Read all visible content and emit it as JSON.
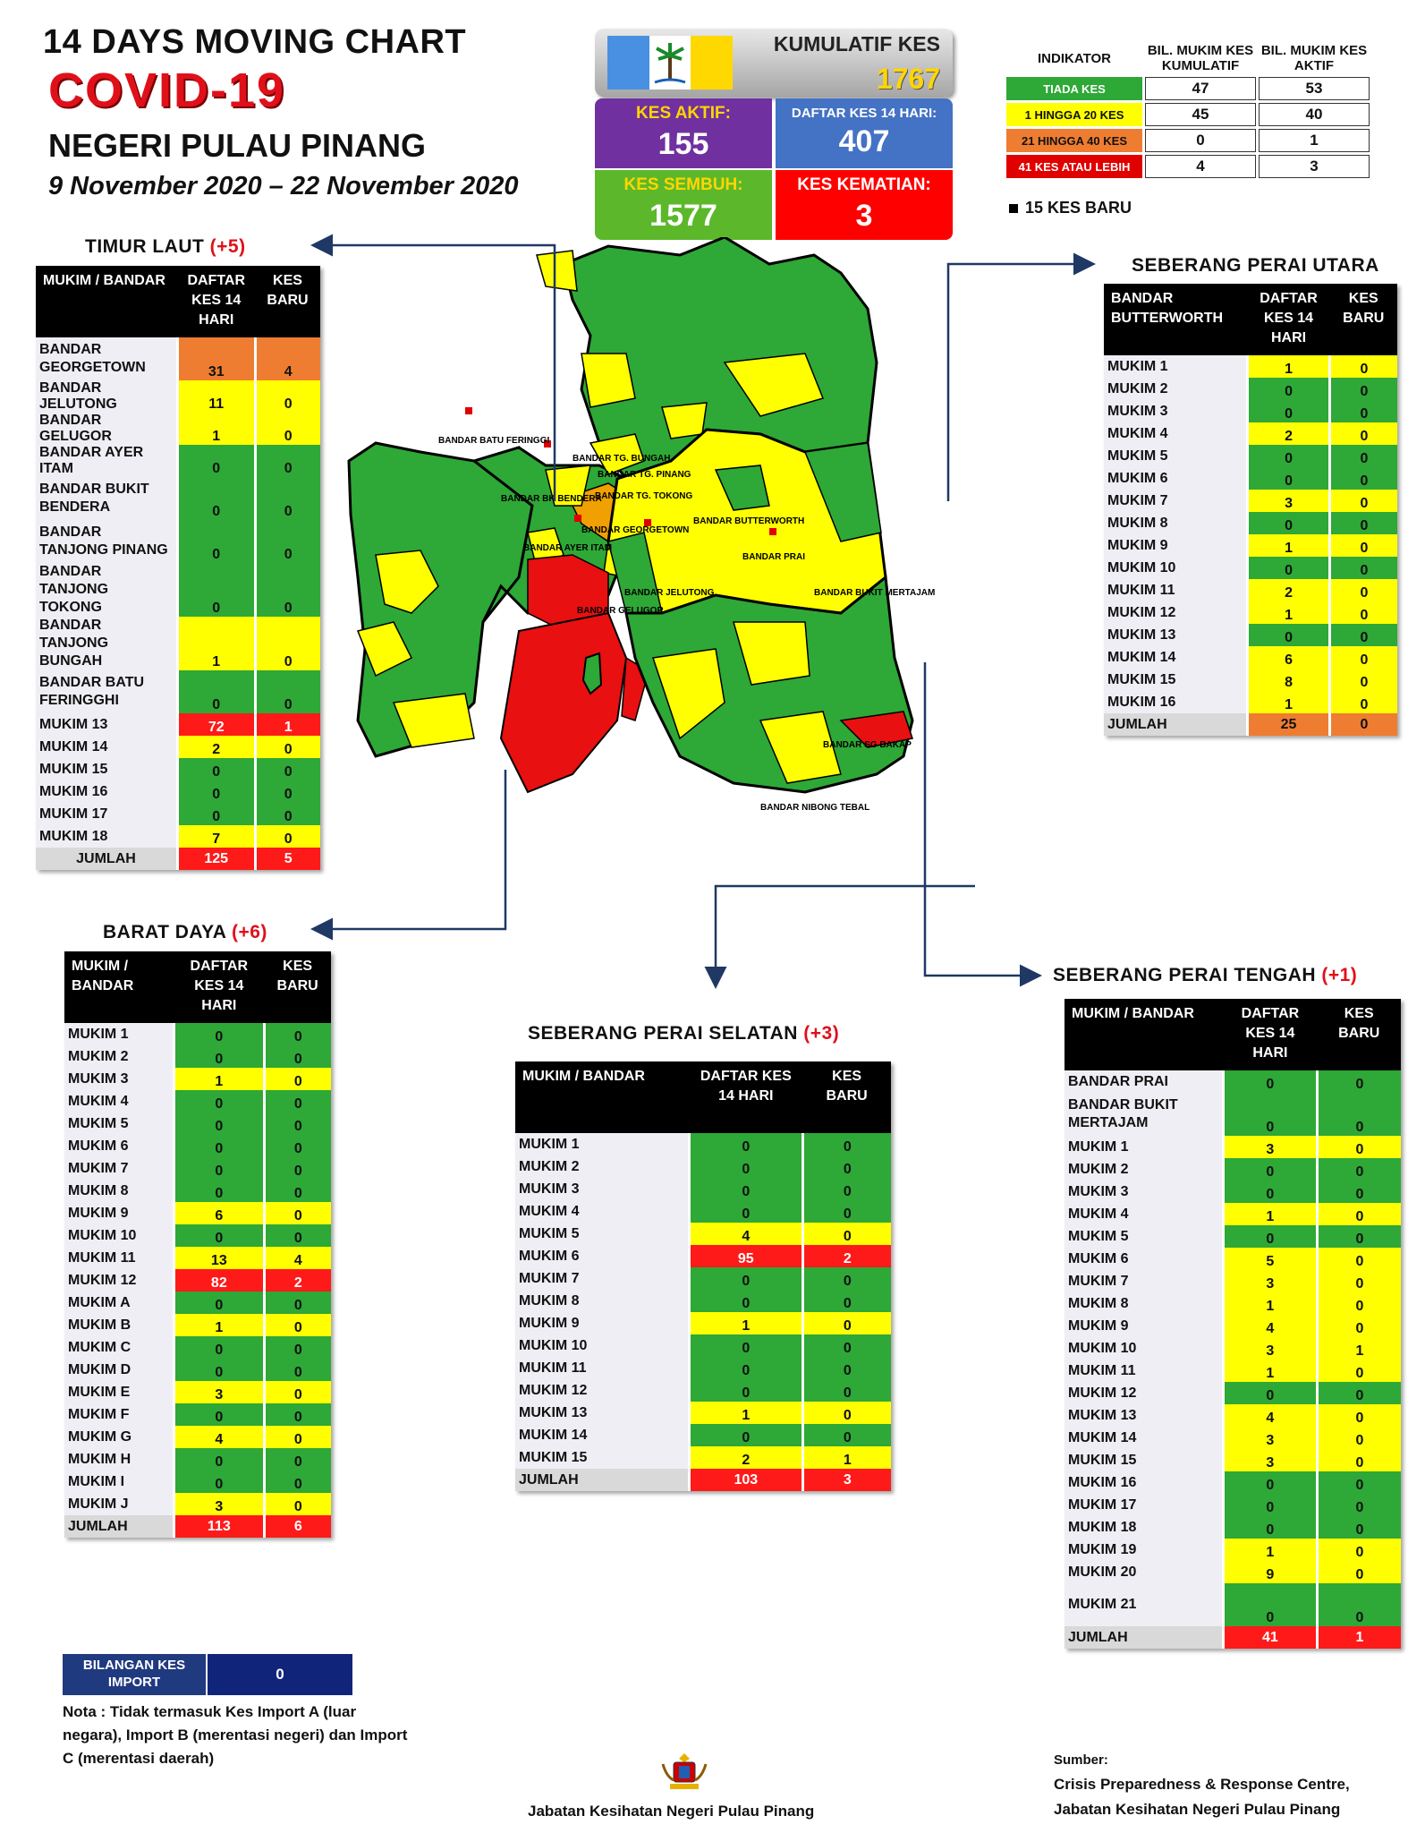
{
  "header": {
    "title1": "14  DAYS MOVING CHART",
    "title2": "COVID-19",
    "title3": "NEGERI PULAU PINANG",
    "dates": "9 November 2020 – 22 November 2020"
  },
  "stats": {
    "kumulatif_label": "KUMULATIF KES",
    "kumulatif_value": "1767",
    "aktif_label": "KES AKTIF:",
    "aktif_value": "155",
    "daftar_label": "DAFTAR KES 14 HARI:",
    "daftar_value": "407",
    "sembuh_label": "KES SEMBUH:",
    "sembuh_value": "1577",
    "kematian_label": "KES KEMATIAN:",
    "kematian_value": "3"
  },
  "legend": {
    "col0": "INDIKATOR",
    "col1": "BIL. MUKIM KES KUMULATIF",
    "col2": "BIL. MUKIM KES AKTIF",
    "rows": [
      {
        "label": "TIADA KES",
        "a": "47",
        "b": "53",
        "color": "#2ea836"
      },
      {
        "label": "1 HINGGA 20 KES",
        "a": "45",
        "b": "40",
        "color": "#ffff00"
      },
      {
        "label": "21 HINGGA 40 KES",
        "a": "0",
        "b": "1",
        "color": "#ef7d31"
      },
      {
        "label": "41 KES ATAU LEBIH",
        "a": "4",
        "b": "3",
        "color": "#ff1a1a"
      }
    ],
    "new_case_note": "15 KES BARU"
  },
  "timur_laut": {
    "title": "TIMUR LAUT",
    "plus": "(+5)",
    "h1": "MUKIM / BANDAR",
    "h2": "DAFTAR KES 14 HARI",
    "h3": "KES BARU",
    "rows": [
      [
        "BANDAR GEORGETOWN",
        "31",
        "4",
        "o",
        "o"
      ],
      [
        "BANDAR JELUTONG",
        "11",
        "0",
        "y",
        "y"
      ],
      [
        "BANDAR GELUGOR",
        "1",
        "0",
        "y",
        "y"
      ],
      [
        "BANDAR AYER ITAM",
        "0",
        "0",
        "g",
        "g"
      ],
      [
        "BANDAR BUKIT BENDERA",
        "0",
        "0",
        "g",
        "g"
      ],
      [
        "BANDAR TANJONG PINANG",
        "0",
        "0",
        "g",
        "g"
      ],
      [
        "BANDAR TANJONG TOKONG",
        "0",
        "0",
        "g",
        "g"
      ],
      [
        "BANDAR TANJONG BUNGAH",
        "1",
        "0",
        "y",
        "y"
      ],
      [
        "BANDAR BATU FERINGGHI",
        "0",
        "0",
        "g",
        "g"
      ],
      [
        "MUKIM 13",
        "72",
        "1",
        "r",
        "r"
      ],
      [
        "MUKIM 14",
        "2",
        "0",
        "y",
        "y"
      ],
      [
        "MUKIM 15",
        "0",
        "0",
        "g",
        "g"
      ],
      [
        "MUKIM 16",
        "0",
        "0",
        "g",
        "g"
      ],
      [
        "MUKIM 17",
        "0",
        "0",
        "g",
        "g"
      ],
      [
        "MUKIM 18",
        "7",
        "0",
        "y",
        "y"
      ]
    ],
    "total": [
      "JUMLAH",
      "125",
      "5"
    ]
  },
  "barat_daya": {
    "title": "BARAT DAYA",
    "plus": "(+6)",
    "h1": "MUKIM / BANDAR",
    "h2": "DAFTAR KES 14 HARI",
    "h3": "KES BARU",
    "rows": [
      [
        "MUKIM 1",
        "0",
        "0",
        "g",
        "g"
      ],
      [
        "MUKIM 2",
        "0",
        "0",
        "g",
        "g"
      ],
      [
        "MUKIM 3",
        "1",
        "0",
        "y",
        "y"
      ],
      [
        "MUKIM 4",
        "0",
        "0",
        "g",
        "g"
      ],
      [
        "MUKIM 5",
        "0",
        "0",
        "g",
        "g"
      ],
      [
        "MUKIM 6",
        "0",
        "0",
        "g",
        "g"
      ],
      [
        "MUKIM 7",
        "0",
        "0",
        "g",
        "g"
      ],
      [
        "MUKIM 8",
        "0",
        "0",
        "g",
        "g"
      ],
      [
        "MUKIM 9",
        "6",
        "0",
        "y",
        "y"
      ],
      [
        "MUKIM 10",
        "0",
        "0",
        "g",
        "g"
      ],
      [
        "MUKIM 11",
        "13",
        "4",
        "y",
        "y"
      ],
      [
        "MUKIM 12",
        "82",
        "2",
        "r",
        "r"
      ],
      [
        "MUKIM A",
        "0",
        "0",
        "g",
        "g"
      ],
      [
        "MUKIM B",
        "1",
        "0",
        "y",
        "y"
      ],
      [
        "MUKIM C",
        "0",
        "0",
        "g",
        "g"
      ],
      [
        "MUKIM D",
        "0",
        "0",
        "g",
        "g"
      ],
      [
        "MUKIM E",
        "3",
        "0",
        "y",
        "y"
      ],
      [
        "MUKIM F",
        "0",
        "0",
        "g",
        "g"
      ],
      [
        "MUKIM G",
        "4",
        "0",
        "y",
        "y"
      ],
      [
        "MUKIM H",
        "0",
        "0",
        "g",
        "g"
      ],
      [
        "MUKIM I",
        "0",
        "0",
        "g",
        "g"
      ],
      [
        "MUKIM J",
        "3",
        "0",
        "y",
        "y"
      ]
    ],
    "total": [
      "JUMLAH",
      "113",
      "6"
    ]
  },
  "spu": {
    "title": "SEBERANG PERAI UTARA",
    "h1": "BANDAR BUTTERWORTH",
    "h2": "DAFTAR KES 14 HARI",
    "h3": "KES BARU",
    "rows": [
      [
        "MUKIM 1",
        "1",
        "0",
        "y",
        "y"
      ],
      [
        "MUKIM 2",
        "0",
        "0",
        "g",
        "g"
      ],
      [
        "MUKIM 3",
        "0",
        "0",
        "g",
        "g"
      ],
      [
        "MUKIM 4",
        "2",
        "0",
        "y",
        "y"
      ],
      [
        "MUKIM 5",
        "0",
        "0",
        "g",
        "g"
      ],
      [
        "MUKIM 6",
        "0",
        "0",
        "g",
        "g"
      ],
      [
        "MUKIM 7",
        "3",
        "0",
        "y",
        "y"
      ],
      [
        "MUKIM 8",
        "0",
        "0",
        "g",
        "g"
      ],
      [
        "MUKIM 9",
        "1",
        "0",
        "y",
        "y"
      ],
      [
        "MUKIM 10",
        "0",
        "0",
        "g",
        "g"
      ],
      [
        "MUKIM 11",
        "2",
        "0",
        "y",
        "y"
      ],
      [
        "MUKIM 12",
        "1",
        "0",
        "y",
        "y"
      ],
      [
        "MUKIM 13",
        "0",
        "0",
        "g",
        "g"
      ],
      [
        "MUKIM 14",
        "6",
        "0",
        "y",
        "y"
      ],
      [
        "MUKIM 15",
        "8",
        "0",
        "y",
        "y"
      ],
      [
        "MUKIM 16",
        "1",
        "0",
        "y",
        "y"
      ]
    ],
    "total": [
      "JUMLAH",
      "25",
      "0"
    ]
  },
  "sps": {
    "title": "SEBERANG PERAI SELATAN",
    "plus": "(+3)",
    "h1": "MUKIM / BANDAR",
    "h2": "DAFTAR KES 14 HARI",
    "h3": "KES BARU",
    "rows": [
      [
        "MUKIM 1",
        "0",
        "0",
        "g",
        "g"
      ],
      [
        "MUKIM 2",
        "0",
        "0",
        "g",
        "g"
      ],
      [
        "MUKIM 3",
        "0",
        "0",
        "g",
        "g"
      ],
      [
        "MUKIM 4",
        "0",
        "0",
        "g",
        "g"
      ],
      [
        "MUKIM 5",
        "4",
        "0",
        "y",
        "y"
      ],
      [
        "MUKIM 6",
        "95",
        "2",
        "r",
        "r"
      ],
      [
        "MUKIM 7",
        "0",
        "0",
        "g",
        "g"
      ],
      [
        "MUKIM 8",
        "0",
        "0",
        "g",
        "g"
      ],
      [
        "MUKIM 9",
        "1",
        "0",
        "y",
        "y"
      ],
      [
        "MUKIM 10",
        "0",
        "0",
        "g",
        "g"
      ],
      [
        "MUKIM 11",
        "0",
        "0",
        "g",
        "g"
      ],
      [
        "MUKIM 12",
        "0",
        "0",
        "g",
        "g"
      ],
      [
        "MUKIM 13",
        "1",
        "0",
        "y",
        "y"
      ],
      [
        "MUKIM 14",
        "0",
        "0",
        "g",
        "g"
      ],
      [
        "MUKIM 15",
        "2",
        "1",
        "y",
        "y"
      ]
    ],
    "total": [
      "JUMLAH",
      "103",
      "3"
    ]
  },
  "spt": {
    "title": "SEBERANG PERAI TENGAH",
    "plus": "(+1)",
    "h1": "MUKIM / BANDAR",
    "h2": "DAFTAR KES 14 HARI",
    "h3": "KES BARU",
    "rows": [
      [
        "BANDAR PRAI",
        "0",
        "0",
        "g",
        "g"
      ],
      [
        "BANDAR BUKIT MERTAJAM",
        "0",
        "0",
        "g",
        "g"
      ],
      [
        "MUKIM 1",
        "3",
        "0",
        "y",
        "y"
      ],
      [
        "MUKIM 2",
        "0",
        "0",
        "g",
        "g"
      ],
      [
        "MUKIM 3",
        "0",
        "0",
        "g",
        "g"
      ],
      [
        "MUKIM 4",
        "1",
        "0",
        "y",
        "y"
      ],
      [
        "MUKIM 5",
        "0",
        "0",
        "g",
        "g"
      ],
      [
        "MUKIM 6",
        "5",
        "0",
        "y",
        "y"
      ],
      [
        "MUKIM 7",
        "3",
        "0",
        "y",
        "y"
      ],
      [
        "MUKIM 8",
        "1",
        "0",
        "y",
        "y"
      ],
      [
        "MUKIM 9",
        "4",
        "0",
        "y",
        "y"
      ],
      [
        "MUKIM 10",
        "3",
        "1",
        "y",
        "y"
      ],
      [
        "MUKIM 11",
        "1",
        "0",
        "y",
        "y"
      ],
      [
        "MUKIM 12",
        "0",
        "0",
        "g",
        "g"
      ],
      [
        "MUKIM 13",
        "4",
        "0",
        "y",
        "y"
      ],
      [
        "MUKIM 14",
        "3",
        "0",
        "y",
        "y"
      ],
      [
        "MUKIM 15",
        "3",
        "0",
        "y",
        "y"
      ],
      [
        "MUKIM 16",
        "0",
        "0",
        "g",
        "g"
      ],
      [
        "MUKIM 17",
        "0",
        "0",
        "g",
        "g"
      ],
      [
        "MUKIM 18",
        "0",
        "0",
        "g",
        "g"
      ],
      [
        "MUKIM 19",
        "1",
        "0",
        "y",
        "y"
      ],
      [
        "MUKIM 20",
        "9",
        "0",
        "y",
        "y"
      ],
      [
        "MUKIM 21",
        "0",
        "0",
        "g",
        "g"
      ]
    ],
    "total": [
      "JUMLAH",
      "41",
      "1"
    ]
  },
  "import_box": {
    "label": "BILANGAN KES IMPORT",
    "value": "0"
  },
  "note": "Nota : Tidak termasuk Kes Import A (luar negara), Import B (merentasi negeri) dan Import C (merentasi daerah)",
  "footer": {
    "dept": "Jabatan Kesihatan Negeri Pulau Pinang",
    "sumber": "Sumber:",
    "src1": "Crisis Preparedness & Response Centre,",
    "src2": "Jabatan Kesihatan Negeri Pulau Pinang"
  },
  "map_labels": {
    "batu_feringgi": "BANDAR BATU FERINGGI",
    "tg_bungah": "BANDAR TG. BUNGAH",
    "tg_pinang": "BANDAR TG. PINANG",
    "tg_tokong": "BANDAR TG. TOKONG",
    "bukit_bendera": "BANDAR BK BENDERA",
    "georgetown": "BANDAR GEORGETOWN",
    "ayer_itam": "BANDAR AYER ITAM",
    "jelutong": "BANDAR JELUTONG",
    "gelugor": "BANDAR GELUGOR",
    "butterworth": "BANDAR BUTTERWORTH",
    "prai": "BANDAR PRAI",
    "bukit_mertajam": "BANDAR BUKIT MERTAJAM",
    "sg_bakap": "BANDAR SG BAKAP",
    "nibong_tebal": "BANDAR NIBONG TEBAL"
  },
  "colors": {
    "green": "#2ea836",
    "yellow": "#ffff00",
    "orange": "#ef7d31",
    "red": "#ff1a1a",
    "purple": "#7030a0",
    "blue": "#4472c4",
    "navy": "#1f3864"
  }
}
